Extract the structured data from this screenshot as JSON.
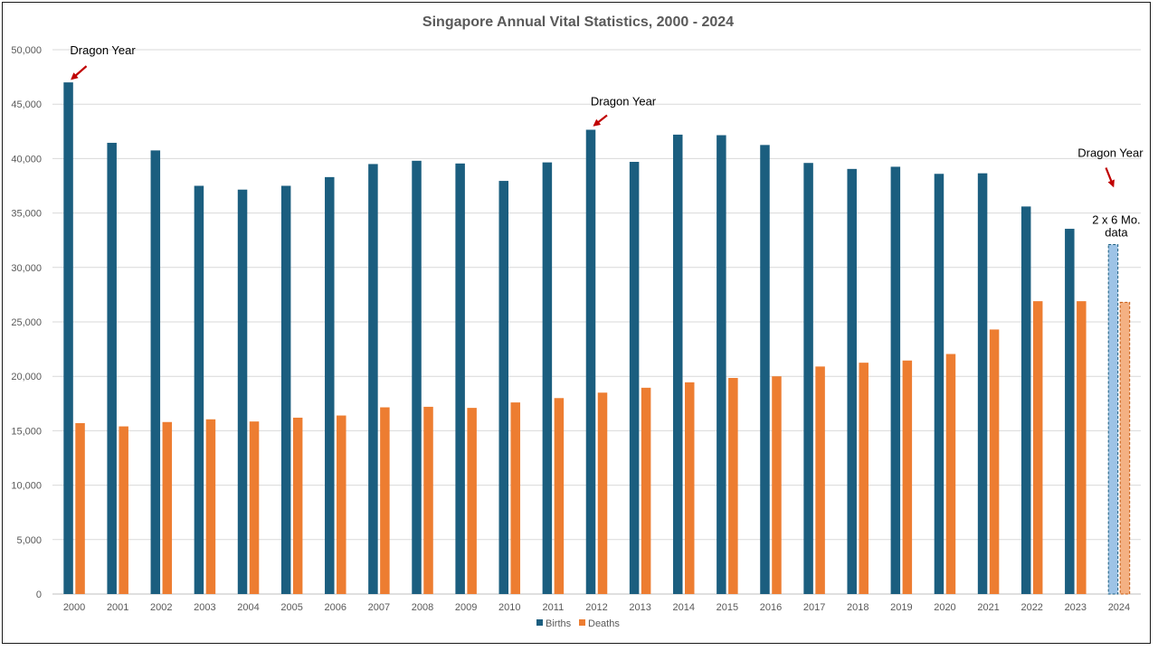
{
  "chart_data": {
    "type": "bar",
    "title": "Singapore Annual Vital Statistics, 2000 - 2024",
    "xlabel": "",
    "ylabel": "",
    "ylim": [
      0,
      50000
    ],
    "yticks": [
      0,
      5000,
      10000,
      15000,
      20000,
      25000,
      30000,
      35000,
      40000,
      45000,
      50000
    ],
    "ytick_labels": [
      "0",
      "5,000",
      "10,000",
      "15,000",
      "20,000",
      "25,000",
      "30,000",
      "35,000",
      "40,000",
      "45,000",
      "50,000"
    ],
    "grid": true,
    "legend_position": "bottom",
    "categories": [
      "2000",
      "2001",
      "2002",
      "2003",
      "2004",
      "2005",
      "2006",
      "2007",
      "2008",
      "2009",
      "2010",
      "2011",
      "2012",
      "2013",
      "2014",
      "2015",
      "2016",
      "2017",
      "2018",
      "2019",
      "2020",
      "2021",
      "2022",
      "2023",
      "2024"
    ],
    "series": [
      {
        "name": "Births",
        "color": "#1b5e7f",
        "projected_color": "#9dc3e6",
        "values": [
          47000,
          41450,
          40750,
          37500,
          37150,
          37500,
          38300,
          39500,
          39800,
          39550,
          37950,
          39650,
          42650,
          39700,
          42200,
          42150,
          41250,
          39600,
          39050,
          39250,
          38600,
          38650,
          35600,
          33550,
          32100
        ]
      },
      {
        "name": "Deaths",
        "color": "#ed7d31",
        "projected_color": "#f4b183",
        "values": [
          15700,
          15400,
          15800,
          16050,
          15850,
          16200,
          16400,
          17150,
          17200,
          17100,
          17600,
          18000,
          18500,
          18950,
          19450,
          19850,
          20000,
          20900,
          21250,
          21450,
          22050,
          24300,
          26900,
          26900,
          26800
        ]
      }
    ],
    "projected_categories": [
      "2024"
    ],
    "annotations": [
      {
        "text": "Dragon Year",
        "category": "2000",
        "value": 47000
      },
      {
        "text": "Dragon Year",
        "category": "2012",
        "value": 42650
      },
      {
        "text": "Dragon Year",
        "category": "2024",
        "value": 37000
      }
    ],
    "note_lines": [
      "2 x 6 Mo.",
      "data"
    ],
    "note_category": "2024"
  }
}
